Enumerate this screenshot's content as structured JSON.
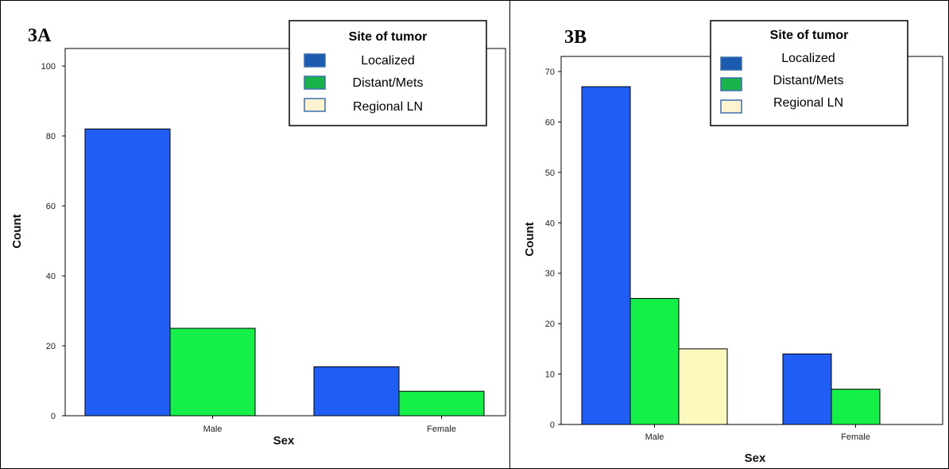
{
  "chart_data": [
    {
      "panel_label": "3A",
      "type": "bar",
      "categories": [
        "Male",
        "Female"
      ],
      "series": [
        {
          "name": "Localized",
          "values": [
            82,
            14
          ]
        },
        {
          "name": "Distant/Mets",
          "values": [
            25,
            7
          ]
        },
        {
          "name": "Regional LN",
          "values": [
            0,
            0
          ]
        }
      ],
      "xlabel": "Sex",
      "ylabel": "Count",
      "ylim": [
        0,
        105
      ],
      "yticks": [
        0,
        20,
        40,
        60,
        80,
        100
      ],
      "legend_title": "Site of tumor",
      "legend_position": "top-right",
      "grid": false
    },
    {
      "panel_label": "3B",
      "type": "bar",
      "categories": [
        "Male",
        "Female"
      ],
      "series": [
        {
          "name": "Localized",
          "values": [
            67,
            14
          ]
        },
        {
          "name": "Distant/Mets",
          "values": [
            25,
            7
          ]
        },
        {
          "name": "Regional LN",
          "values": [
            15,
            0
          ]
        }
      ],
      "xlabel": "Sex",
      "ylabel": "Count",
      "ylim": [
        0,
        73
      ],
      "yticks": [
        0,
        10,
        20,
        30,
        40,
        50,
        60,
        70
      ],
      "legend_title": "Site of tumor",
      "legend_position": "top-right",
      "grid": false
    }
  ],
  "colors": {
    "Localized": "#1f5df5",
    "Distant/Mets": "#14f048",
    "Regional LN": "#fdf8bd",
    "legend_localized_swatch": "#1a5bb0",
    "legend_distant_swatch": "#1ab34a",
    "legend_regional_swatch": "#fdf4cf"
  }
}
